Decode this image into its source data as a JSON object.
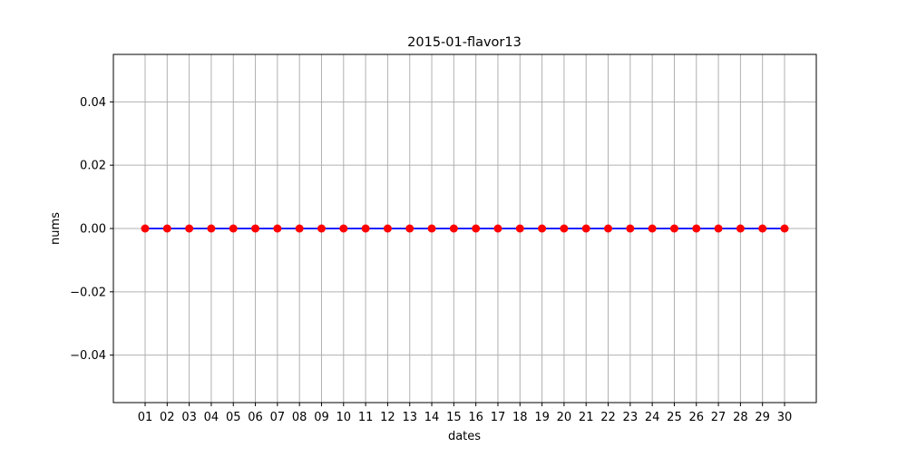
{
  "chart_data": {
    "type": "line",
    "title": "2015-01-flavor13",
    "xlabel": "dates",
    "ylabel": "nums",
    "categories": [
      "01",
      "02",
      "03",
      "04",
      "05",
      "06",
      "07",
      "08",
      "09",
      "10",
      "11",
      "12",
      "13",
      "14",
      "15",
      "16",
      "17",
      "18",
      "19",
      "20",
      "21",
      "22",
      "23",
      "24",
      "25",
      "26",
      "27",
      "28",
      "29",
      "30"
    ],
    "series": [
      {
        "values": [
          0,
          0,
          0,
          0,
          0,
          0,
          0,
          0,
          0,
          0,
          0,
          0,
          0,
          0,
          0,
          0,
          0,
          0,
          0,
          0,
          0,
          0,
          0,
          0,
          0,
          0,
          0,
          0,
          0,
          0
        ],
        "line_color": "#0000ff",
        "marker_color": "#ff0000"
      }
    ],
    "ylim": [
      -0.055,
      0.055
    ],
    "yticks": [
      -0.04,
      -0.02,
      0.0,
      0.02,
      0.04
    ],
    "ytick_labels": [
      "−0.04",
      "−0.02",
      "0.00",
      "0.02",
      "0.04"
    ],
    "grid": true,
    "grid_color": "#b0b0b0"
  }
}
